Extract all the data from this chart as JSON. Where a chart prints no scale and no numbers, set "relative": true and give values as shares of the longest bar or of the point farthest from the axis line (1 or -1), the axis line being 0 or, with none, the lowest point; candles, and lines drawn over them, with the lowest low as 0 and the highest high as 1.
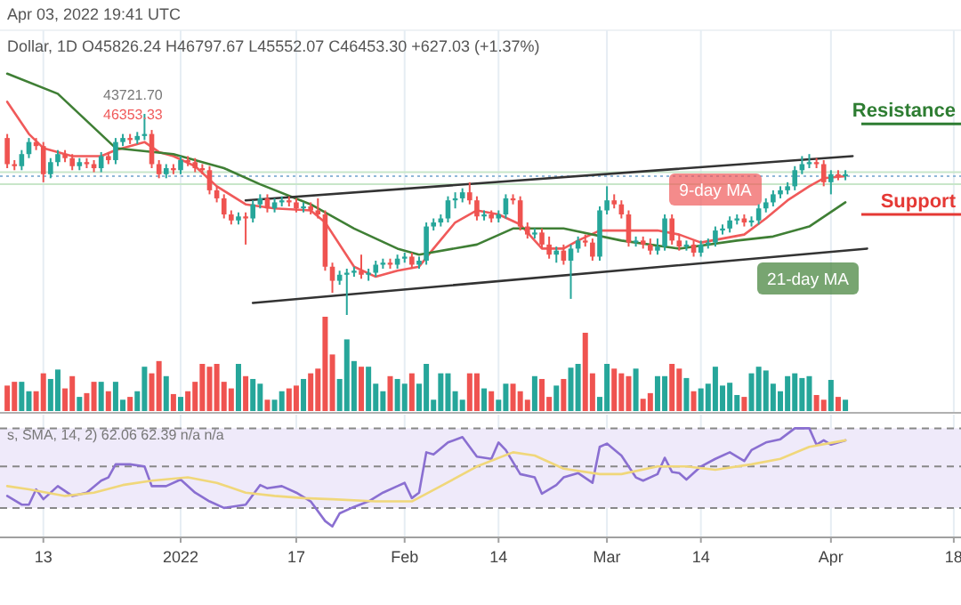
{
  "chart_data": [
    {
      "type": "candlestick",
      "relative": true,
      "grid": "x",
      "tick_labels": false,
      "xlim": [
        "2021-12-07",
        "2022-04-19"
      ],
      "xticks": [
        {
          "value": "2021-12-13",
          "label": null
        },
        {
          "value": "2022-01-01",
          "label": null
        },
        {
          "value": "2022-01-17",
          "label": null
        },
        {
          "value": "2022-02-01",
          "label": null
        },
        {
          "value": "2022-02-14",
          "label": null
        },
        {
          "value": "2022-03-01",
          "label": null
        },
        {
          "value": "2022-03-14",
          "label": null
        },
        {
          "value": "2022-04-01",
          "label": null
        },
        {
          "value": "2022-04-18",
          "label": null
        }
      ],
      "x": [
        "2021-12-08",
        "2021-12-09",
        "2021-12-10",
        "2021-12-11",
        "2021-12-12",
        "2021-12-13",
        "2021-12-14",
        "2021-12-15",
        "2021-12-16",
        "2021-12-17",
        "2021-12-18",
        "2021-12-19",
        "2021-12-20",
        "2021-12-21",
        "2021-12-22",
        "2021-12-23",
        "2021-12-24",
        "2021-12-25",
        "2021-12-26",
        "2021-12-27",
        "2021-12-28",
        "2021-12-29",
        "2021-12-30",
        "2021-12-31",
        "2022-01-01",
        "2022-01-02",
        "2022-01-03",
        "2022-01-04",
        "2022-01-05",
        "2022-01-06",
        "2022-01-07",
        "2022-01-08",
        "2022-01-09",
        "2022-01-10",
        "2022-01-11",
        "2022-01-12",
        "2022-01-13",
        "2022-01-14",
        "2022-01-15",
        "2022-01-16",
        "2022-01-17",
        "2022-01-18",
        "2022-01-19",
        "2022-01-20",
        "2022-01-21",
        "2022-01-22",
        "2022-01-23",
        "2022-01-24",
        "2022-01-25",
        "2022-01-26",
        "2022-01-27",
        "2022-01-28",
        "2022-01-29",
        "2022-01-30",
        "2022-01-31",
        "2022-02-01",
        "2022-02-02",
        "2022-02-03",
        "2022-02-04",
        "2022-02-05",
        "2022-02-06",
        "2022-02-07",
        "2022-02-08",
        "2022-02-09",
        "2022-02-10",
        "2022-02-11",
        "2022-02-12",
        "2022-02-13",
        "2022-02-14",
        "2022-02-15",
        "2022-02-16",
        "2022-02-17",
        "2022-02-18",
        "2022-02-19",
        "2022-02-20",
        "2022-02-21",
        "2022-02-22",
        "2022-02-23",
        "2022-02-24",
        "2022-02-25",
        "2022-02-26",
        "2022-02-27",
        "2022-02-28",
        "2022-03-01",
        "2022-03-02",
        "2022-03-03",
        "2022-03-04",
        "2022-03-05",
        "2022-03-06",
        "2022-03-07",
        "2022-03-08",
        "2022-03-09",
        "2022-03-10",
        "2022-03-11",
        "2022-03-12",
        "2022-03-13",
        "2022-03-14",
        "2022-03-15",
        "2022-03-16",
        "2022-03-17",
        "2022-03-18",
        "2022-03-19",
        "2022-03-20",
        "2022-03-21",
        "2022-03-22",
        "2022-03-23",
        "2022-03-24",
        "2022-03-25",
        "2022-03-26",
        "2022-03-27",
        "2022-03-28",
        "2022-03-29",
        "2022-03-30",
        "2022-03-31",
        "2022-04-01",
        "2022-04-02",
        "2022-04-03"
      ],
      "ohlc": [
        [
          0.88,
          0.9,
          0.73,
          0.75
        ],
        [
          0.75,
          0.77,
          0.72,
          0.74
        ],
        [
          0.74,
          0.82,
          0.72,
          0.8
        ],
        [
          0.8,
          0.88,
          0.78,
          0.86
        ],
        [
          0.86,
          0.88,
          0.82,
          0.84
        ],
        [
          0.84,
          0.86,
          0.66,
          0.7
        ],
        [
          0.7,
          0.78,
          0.68,
          0.76
        ],
        [
          0.76,
          0.82,
          0.74,
          0.8
        ],
        [
          0.8,
          0.82,
          0.76,
          0.78
        ],
        [
          0.78,
          0.8,
          0.72,
          0.74
        ],
        [
          0.74,
          0.78,
          0.72,
          0.76
        ],
        [
          0.76,
          0.78,
          0.73,
          0.75
        ],
        [
          0.75,
          0.77,
          0.71,
          0.73
        ],
        [
          0.73,
          0.81,
          0.71,
          0.79
        ],
        [
          0.79,
          0.81,
          0.75,
          0.77
        ],
        [
          0.77,
          0.88,
          0.75,
          0.86
        ],
        [
          0.86,
          0.9,
          0.84,
          0.88
        ],
        [
          0.88,
          0.9,
          0.85,
          0.87
        ],
        [
          0.87,
          0.91,
          0.85,
          0.89
        ],
        [
          0.89,
          1,
          0.87,
          0.9
        ],
        [
          0.9,
          0.92,
          0.73,
          0.75
        ],
        [
          0.75,
          0.77,
          0.68,
          0.7
        ],
        [
          0.7,
          0.75,
          0.68,
          0.73
        ],
        [
          0.73,
          0.75,
          0.7,
          0.72
        ],
        [
          0.72,
          0.79,
          0.7,
          0.77
        ],
        [
          0.77,
          0.79,
          0.74,
          0.76
        ],
        [
          0.76,
          0.78,
          0.71,
          0.73
        ],
        [
          0.73,
          0.75,
          0.7,
          0.72
        ],
        [
          0.72,
          0.74,
          0.6,
          0.62
        ],
        [
          0.62,
          0.64,
          0.56,
          0.58
        ],
        [
          0.58,
          0.6,
          0.48,
          0.5
        ],
        [
          0.5,
          0.52,
          0.45,
          0.47
        ],
        [
          0.47,
          0.51,
          0.45,
          0.49
        ],
        [
          0.49,
          0.51,
          0.35,
          0.48
        ],
        [
          0.48,
          0.57,
          0.46,
          0.55
        ],
        [
          0.55,
          0.6,
          0.53,
          0.58
        ],
        [
          0.58,
          0.6,
          0.51,
          0.53
        ],
        [
          0.53,
          0.58,
          0.51,
          0.56
        ],
        [
          0.56,
          0.59,
          0.54,
          0.57
        ],
        [
          0.57,
          0.59,
          0.54,
          0.56
        ],
        [
          0.56,
          0.58,
          0.51,
          0.53
        ],
        [
          0.53,
          0.56,
          0.51,
          0.54
        ],
        [
          0.54,
          0.56,
          0.5,
          0.52
        ],
        [
          0.52,
          0.58,
          0.48,
          0.5
        ],
        [
          0.5,
          0.52,
          0.22,
          0.24
        ],
        [
          0.24,
          0.26,
          0.11,
          0.17
        ],
        [
          0.17,
          0.22,
          0.15,
          0.2
        ],
        [
          0.2,
          0.23,
          0,
          0.21
        ],
        [
          0.21,
          0.24,
          0.19,
          0.22
        ],
        [
          0.22,
          0.3,
          0.18,
          0.2
        ],
        [
          0.2,
          0.23,
          0.17,
          0.21
        ],
        [
          0.21,
          0.27,
          0.19,
          0.25
        ],
        [
          0.25,
          0.28,
          0.23,
          0.26
        ],
        [
          0.26,
          0.28,
          0.23,
          0.25
        ],
        [
          0.25,
          0.3,
          0.23,
          0.28
        ],
        [
          0.28,
          0.31,
          0.26,
          0.29
        ],
        [
          0.29,
          0.31,
          0.23,
          0.25
        ],
        [
          0.25,
          0.29,
          0.23,
          0.27
        ],
        [
          0.27,
          0.46,
          0.25,
          0.44
        ],
        [
          0.44,
          0.48,
          0.42,
          0.46
        ],
        [
          0.46,
          0.5,
          0.44,
          0.48
        ],
        [
          0.48,
          0.59,
          0.46,
          0.57
        ],
        [
          0.57,
          0.61,
          0.53,
          0.58
        ],
        [
          0.58,
          0.63,
          0.56,
          0.61
        ],
        [
          0.61,
          0.66,
          0.55,
          0.57
        ],
        [
          0.57,
          0.59,
          0.47,
          0.49
        ],
        [
          0.49,
          0.52,
          0.47,
          0.5
        ],
        [
          0.5,
          0.52,
          0.46,
          0.48
        ],
        [
          0.48,
          0.52,
          0.46,
          0.5
        ],
        [
          0.5,
          0.6,
          0.48,
          0.58
        ],
        [
          0.58,
          0.6,
          0.55,
          0.57
        ],
        [
          0.57,
          0.59,
          0.42,
          0.44
        ],
        [
          0.44,
          0.46,
          0.38,
          0.4
        ],
        [
          0.4,
          0.43,
          0.38,
          0.41
        ],
        [
          0.41,
          0.43,
          0.33,
          0.35
        ],
        [
          0.35,
          0.39,
          0.28,
          0.3
        ],
        [
          0.3,
          0.34,
          0.26,
          0.32
        ],
        [
          0.32,
          0.35,
          0.25,
          0.27
        ],
        [
          0.27,
          0.35,
          0.08,
          0.33
        ],
        [
          0.33,
          0.39,
          0.31,
          0.37
        ],
        [
          0.37,
          0.4,
          0.34,
          0.36
        ],
        [
          0.36,
          0.38,
          0.27,
          0.29
        ],
        [
          0.29,
          0.54,
          0.27,
          0.52
        ],
        [
          0.52,
          0.64,
          0.5,
          0.57
        ],
        [
          0.57,
          0.6,
          0.53,
          0.55
        ],
        [
          0.55,
          0.57,
          0.48,
          0.5
        ],
        [
          0.5,
          0.52,
          0.34,
          0.36
        ],
        [
          0.36,
          0.39,
          0.34,
          0.37
        ],
        [
          0.37,
          0.39,
          0.33,
          0.35
        ],
        [
          0.35,
          0.38,
          0.3,
          0.32
        ],
        [
          0.32,
          0.38,
          0.3,
          0.34
        ],
        [
          0.34,
          0.5,
          0.32,
          0.48
        ],
        [
          0.48,
          0.5,
          0.35,
          0.37
        ],
        [
          0.37,
          0.4,
          0.32,
          0.34
        ],
        [
          0.34,
          0.37,
          0.32,
          0.35
        ],
        [
          0.35,
          0.37,
          0.29,
          0.31
        ],
        [
          0.31,
          0.37,
          0.29,
          0.35
        ],
        [
          0.35,
          0.38,
          0.33,
          0.36
        ],
        [
          0.36,
          0.44,
          0.34,
          0.42
        ],
        [
          0.42,
          0.45,
          0.4,
          0.43
        ],
        [
          0.43,
          0.49,
          0.41,
          0.47
        ],
        [
          0.47,
          0.5,
          0.45,
          0.48
        ],
        [
          0.48,
          0.5,
          0.44,
          0.46
        ],
        [
          0.46,
          0.49,
          0.44,
          0.47
        ],
        [
          0.47,
          0.55,
          0.45,
          0.53
        ],
        [
          0.53,
          0.58,
          0.51,
          0.56
        ],
        [
          0.56,
          0.62,
          0.54,
          0.6
        ],
        [
          0.6,
          0.64,
          0.58,
          0.62
        ],
        [
          0.62,
          0.66,
          0.6,
          0.64
        ],
        [
          0.64,
          0.74,
          0.62,
          0.72
        ],
        [
          0.72,
          0.79,
          0.7,
          0.75
        ],
        [
          0.75,
          0.8,
          0.73,
          0.76
        ],
        [
          0.76,
          0.78,
          0.73,
          0.75
        ],
        [
          0.75,
          0.77,
          0.64,
          0.66
        ],
        [
          0.66,
          0.72,
          0.6,
          0.7
        ],
        [
          0.7,
          0.72,
          0.67,
          0.69
        ],
        [
          0.69,
          0.72,
          0.67,
          0.7
        ]
      ],
      "colors": [
        "#ef5350",
        "#ef5350",
        "#26a69a",
        "#26a69a",
        "#ef5350",
        "#ef5350",
        "#26a69a",
        "#26a69a",
        "#ef5350",
        "#ef5350",
        "#26a69a",
        "#ef5350",
        "#ef5350",
        "#26a69a",
        "#ef5350",
        "#26a69a",
        "#26a69a",
        "#ef5350",
        "#26a69a",
        "#26a69a",
        "#ef5350",
        "#ef5350",
        "#26a69a",
        "#ef5350",
        "#26a69a",
        "#ef5350",
        "#ef5350",
        "#ef5350",
        "#ef5350",
        "#ef5350",
        "#ef5350",
        "#ef5350",
        "#26a69a",
        "#ef5350",
        "#26a69a",
        "#26a69a",
        "#ef5350",
        "#26a69a",
        "#26a69a",
        "#ef5350",
        "#ef5350",
        "#26a69a",
        "#ef5350",
        "#ef5350",
        "#ef5350",
        "#ef5350",
        "#26a69a",
        "#26a69a",
        "#26a69a",
        "#ef5350",
        "#26a69a",
        "#26a69a",
        "#26a69a",
        "#ef5350",
        "#26a69a",
        "#26a69a",
        "#ef5350",
        "#26a69a",
        "#26a69a",
        "#26a69a",
        "#26a69a",
        "#26a69a",
        "#26a69a",
        "#26a69a",
        "#ef5350",
        "#ef5350",
        "#26a69a",
        "#ef5350",
        "#26a69a",
        "#26a69a",
        "#ef5350",
        "#ef5350",
        "#ef5350",
        "#26a69a",
        "#ef5350",
        "#ef5350",
        "#26a69a",
        "#ef5350",
        "#26a69a",
        "#26a69a",
        "#ef5350",
        "#ef5350",
        "#26a69a",
        "#26a69a",
        "#ef5350",
        "#ef5350",
        "#ef5350",
        "#26a69a",
        "#ef5350",
        "#ef5350",
        "#26a69a",
        "#26a69a",
        "#ef5350",
        "#ef5350",
        "#26a69a",
        "#ef5350",
        "#26a69a",
        "#26a69a",
        "#26a69a",
        "#26a69a",
        "#26a69a",
        "#26a69a",
        "#ef5350",
        "#26a69a",
        "#26a69a",
        "#26a69a",
        "#26a69a",
        "#26a69a",
        "#26a69a",
        "#26a69a",
        "#26a69a",
        "#26a69a",
        "#ef5350",
        "#ef5350",
        "#26a69a",
        "#ef5350",
        "#26a69a"
      ],
      "series": [
        {
          "type": "line",
          "color": "#f05a5a",
          "x": [
            "2021-12-08",
            "2021-12-11",
            "2021-12-13",
            "2021-12-17",
            "2021-12-21",
            "2021-12-23",
            "2021-12-27",
            "2021-12-29",
            "2021-12-31",
            "2022-01-03",
            "2022-01-06",
            "2022-01-10",
            "2022-01-14",
            "2022-01-19",
            "2022-01-21",
            "2022-01-25",
            "2022-01-28",
            "2022-01-31",
            "2022-02-03",
            "2022-02-05",
            "2022-02-08",
            "2022-02-11",
            "2022-02-14",
            "2022-02-17",
            "2022-02-20",
            "2022-02-23",
            "2022-02-25",
            "2022-02-28",
            "2022-03-03",
            "2022-03-05",
            "2022-03-08",
            "2022-03-11",
            "2022-03-14",
            "2022-03-17",
            "2022-03-20",
            "2022-03-23",
            "2022-03-26",
            "2022-03-29",
            "2022-03-31",
            "2022-04-03"
          ],
          "values": [
            1.06,
            0.9,
            0.83,
            0.79,
            0.79,
            0.82,
            0.86,
            0.81,
            0.79,
            0.74,
            0.64,
            0.55,
            0.53,
            0.52,
            0.46,
            0.24,
            0.19,
            0.22,
            0.24,
            0.33,
            0.46,
            0.52,
            0.5,
            0.45,
            0.33,
            0.33,
            0.37,
            0.42,
            0.42,
            0.42,
            0.42,
            0.4,
            0.36,
            0.38,
            0.4,
            0.48,
            0.57,
            0.64,
            0.68,
            0.69
          ]
        },
        {
          "type": "line",
          "color": "#3f7f35",
          "x": [
            "2021-12-08",
            "2021-12-15",
            "2021-12-23",
            "2021-12-31",
            "2022-01-07",
            "2022-01-12",
            "2022-01-19",
            "2022-01-25",
            "2022-01-31",
            "2022-02-03",
            "2022-02-11",
            "2022-02-16",
            "2022-02-23",
            "2022-03-03",
            "2022-03-11",
            "2022-03-19",
            "2022-03-24",
            "2022-03-29",
            "2022-04-03"
          ],
          "values": [
            1.2,
            1.1,
            0.83,
            0.8,
            0.73,
            0.65,
            0.55,
            0.43,
            0.33,
            0.3,
            0.35,
            0.43,
            0.43,
            0.37,
            0.33,
            0.37,
            0.39,
            0.44,
            0.56
          ]
        },
        {
          "type": "line",
          "color": "#333333",
          "x": [
            "2022-01-10",
            "2022-04-04"
          ],
          "values": [
            0.57,
            0.79
          ]
        },
        {
          "type": "line",
          "color": "#333333",
          "x": [
            "2022-01-11",
            "2022-04-06"
          ],
          "values": [
            0.06,
            0.33
          ]
        }
      ],
      "ref_lines": [
        {
          "axis": "y",
          "value": 0.71,
          "color": "#c8e6c9"
        },
        {
          "axis": "y",
          "value": 0.65,
          "color": "#c8e6c9"
        },
        {
          "axis": "y",
          "value": 0.69,
          "color": "#90b8d8",
          "line_style": "dotted"
        },
        {
          "axis": "y",
          "value": 0.95,
          "label": "Resistance",
          "color": "#2e7d32"
        },
        {
          "axis": "y",
          "value": 0.5,
          "label": "Support",
          "color": "#e53935"
        }
      ],
      "annotations": [
        "Apr 03, 2022 19:41 UTC",
        "Dollar, 1D  O45826.24  H46797.67  L45552.07  C46453.30  +627.03 (+1.37%)",
        "43721.70",
        "46353.33",
        "9-day MA",
        "21-day MA"
      ]
    },
    {
      "type": "bar",
      "relative": true,
      "grid": "x",
      "tick_labels": false,
      "xlim": [
        "2021-12-07",
        "2022-04-19"
      ],
      "xticks": [
        {
          "value": "2021-12-13",
          "label": null
        },
        {
          "value": "2022-01-01",
          "label": null
        },
        {
          "value": "2022-01-17",
          "label": null
        },
        {
          "value": "2022-02-01",
          "label": null
        },
        {
          "value": "2022-02-14",
          "label": null
        },
        {
          "value": "2022-03-01",
          "label": null
        },
        {
          "value": "2022-03-14",
          "label": null
        },
        {
          "value": "2022-04-01",
          "label": null
        },
        {
          "value": "2022-04-18",
          "label": null
        }
      ],
      "x": [
        "2021-12-08",
        "2021-12-09",
        "2021-12-10",
        "2021-12-11",
        "2021-12-12",
        "2021-12-13",
        "2021-12-14",
        "2021-12-15",
        "2021-12-16",
        "2021-12-17",
        "2021-12-18",
        "2021-12-19",
        "2021-12-20",
        "2021-12-21",
        "2021-12-22",
        "2021-12-23",
        "2021-12-24",
        "2021-12-25",
        "2021-12-26",
        "2021-12-27",
        "2021-12-28",
        "2021-12-29",
        "2021-12-30",
        "2021-12-31",
        "2022-01-01",
        "2022-01-02",
        "2022-01-03",
        "2022-01-04",
        "2022-01-05",
        "2022-01-06",
        "2022-01-07",
        "2022-01-08",
        "2022-01-09",
        "2022-01-10",
        "2022-01-11",
        "2022-01-12",
        "2022-01-13",
        "2022-01-14",
        "2022-01-15",
        "2022-01-16",
        "2022-01-17",
        "2022-01-18",
        "2022-01-19",
        "2022-01-20",
        "2022-01-21",
        "2022-01-22",
        "2022-01-23",
        "2022-01-24",
        "2022-01-25",
        "2022-01-26",
        "2022-01-27",
        "2022-01-28",
        "2022-01-29",
        "2022-01-30",
        "2022-01-31",
        "2022-02-01",
        "2022-02-02",
        "2022-02-03",
        "2022-02-04",
        "2022-02-05",
        "2022-02-06",
        "2022-02-07",
        "2022-02-08",
        "2022-02-09",
        "2022-02-10",
        "2022-02-11",
        "2022-02-12",
        "2022-02-13",
        "2022-02-14",
        "2022-02-15",
        "2022-02-16",
        "2022-02-17",
        "2022-02-18",
        "2022-02-19",
        "2022-02-20",
        "2022-02-21",
        "2022-02-22",
        "2022-02-23",
        "2022-02-24",
        "2022-02-25",
        "2022-02-26",
        "2022-02-27",
        "2022-02-28",
        "2022-03-01",
        "2022-03-02",
        "2022-03-03",
        "2022-03-04",
        "2022-03-05",
        "2022-03-06",
        "2022-03-07",
        "2022-03-08",
        "2022-03-09",
        "2022-03-10",
        "2022-03-11",
        "2022-03-12",
        "2022-03-13",
        "2022-03-14",
        "2022-03-15",
        "2022-03-16",
        "2022-03-17",
        "2022-03-18",
        "2022-03-19",
        "2022-03-20",
        "2022-03-21",
        "2022-03-22",
        "2022-03-23",
        "2022-03-24",
        "2022-03-25",
        "2022-03-26",
        "2022-03-27",
        "2022-03-28",
        "2022-03-29",
        "2022-03-30",
        "2022-03-31",
        "2022-04-01",
        "2022-04-02",
        "2022-04-03"
      ],
      "values": [
        0.27,
        0.31,
        0.31,
        0.21,
        0.21,
        0.4,
        0.34,
        0.44,
        0.24,
        0.37,
        0.15,
        0.19,
        0.31,
        0.31,
        0.21,
        0.31,
        0.12,
        0.15,
        0.21,
        0.47,
        0.4,
        0.53,
        0.37,
        0.18,
        0.15,
        0.21,
        0.31,
        0.5,
        0.47,
        0.5,
        0.31,
        0.24,
        0.5,
        0.37,
        0.34,
        0.29,
        0.12,
        0.12,
        0.21,
        0.24,
        0.27,
        0.34,
        0.4,
        0.45,
        1,
        0.6,
        0.34,
        0.76,
        0.53,
        0.47,
        0.47,
        0.29,
        0.21,
        0.37,
        0.34,
        0.29,
        0.4,
        0.29,
        0.5,
        0.12,
        0.4,
        0.4,
        0.21,
        0.12,
        0.4,
        0.4,
        0.24,
        0.21,
        0.12,
        0.29,
        0.29,
        0.21,
        0.12,
        0.37,
        0.34,
        0.15,
        0.27,
        0.34,
        0.46,
        0.5,
        0.83,
        0.4,
        0.15,
        0.5,
        0.45,
        0.4,
        0.37,
        0.45,
        0.13,
        0.19,
        0.37,
        0.37,
        0.5,
        0.45,
        0.35,
        0.21,
        0.24,
        0.29,
        0.47,
        0.27,
        0.3,
        0.17,
        0.15,
        0.4,
        0.47,
        0.43,
        0.29,
        0.21,
        0.37,
        0.4,
        0.35,
        0.37,
        0.17,
        0.12,
        0.33,
        0.15,
        0.12
      ],
      "colors": [
        "#ef5350",
        "#ef5350",
        "#26a69a",
        "#26a69a",
        "#ef5350",
        "#ef5350",
        "#26a69a",
        "#26a69a",
        "#ef5350",
        "#ef5350",
        "#26a69a",
        "#ef5350",
        "#ef5350",
        "#26a69a",
        "#ef5350",
        "#26a69a",
        "#26a69a",
        "#ef5350",
        "#26a69a",
        "#26a69a",
        "#ef5350",
        "#ef5350",
        "#26a69a",
        "#ef5350",
        "#26a69a",
        "#ef5350",
        "#ef5350",
        "#ef5350",
        "#ef5350",
        "#ef5350",
        "#ef5350",
        "#ef5350",
        "#26a69a",
        "#ef5350",
        "#26a69a",
        "#26a69a",
        "#ef5350",
        "#26a69a",
        "#26a69a",
        "#ef5350",
        "#ef5350",
        "#26a69a",
        "#ef5350",
        "#ef5350",
        "#ef5350",
        "#ef5350",
        "#26a69a",
        "#26a69a",
        "#26a69a",
        "#ef5350",
        "#26a69a",
        "#26a69a",
        "#26a69a",
        "#ef5350",
        "#26a69a",
        "#26a69a",
        "#ef5350",
        "#26a69a",
        "#26a69a",
        "#26a69a",
        "#26a69a",
        "#26a69a",
        "#26a69a",
        "#26a69a",
        "#ef5350",
        "#ef5350",
        "#26a69a",
        "#ef5350",
        "#26a69a",
        "#26a69a",
        "#ef5350",
        "#ef5350",
        "#ef5350",
        "#26a69a",
        "#ef5350",
        "#ef5350",
        "#26a69a",
        "#ef5350",
        "#26a69a",
        "#26a69a",
        "#ef5350",
        "#ef5350",
        "#26a69a",
        "#26a69a",
        "#ef5350",
        "#ef5350",
        "#ef5350",
        "#26a69a",
        "#ef5350",
        "#ef5350",
        "#26a69a",
        "#26a69a",
        "#ef5350",
        "#ef5350",
        "#26a69a",
        "#ef5350",
        "#26a69a",
        "#26a69a",
        "#26a69a",
        "#26a69a",
        "#26a69a",
        "#26a69a",
        "#ef5350",
        "#26a69a",
        "#26a69a",
        "#26a69a",
        "#26a69a",
        "#26a69a",
        "#26a69a",
        "#26a69a",
        "#26a69a",
        "#26a69a",
        "#ef5350",
        "#ef5350",
        "#26a69a",
        "#ef5350",
        "#26a69a"
      ]
    },
    {
      "type": "line",
      "relative": true,
      "grid": "x",
      "tick_labels": "x",
      "xlim": [
        "2021-12-07",
        "2022-04-19"
      ],
      "xticks": [
        {
          "value": "2021-12-13",
          "label": "13"
        },
        {
          "value": "2022-01-01",
          "label": "2022"
        },
        {
          "value": "2022-01-17",
          "label": "17"
        },
        {
          "value": "2022-02-01",
          "label": "Feb"
        },
        {
          "value": "2022-02-14",
          "label": "14"
        },
        {
          "value": "2022-03-01",
          "label": "Mar"
        },
        {
          "value": "2022-03-14",
          "label": "14"
        },
        {
          "value": "2022-04-01",
          "label": "Apr"
        },
        {
          "value": "2022-04-18",
          "label": "18"
        }
      ],
      "series": [
        {
          "color": "#8a6fd1",
          "x": [
            "2021-12-08",
            "2021-12-10",
            "2021-12-11",
            "2021-12-12",
            "2021-12-13",
            "2021-12-15",
            "2021-12-17",
            "2021-12-19",
            "2021-12-21",
            "2021-12-22",
            "2021-12-23",
            "2021-12-25",
            "2021-12-27",
            "2021-12-28",
            "2021-12-30",
            "2022-01-01",
            "2022-01-03",
            "2022-01-05",
            "2022-01-07",
            "2022-01-10",
            "2022-01-12",
            "2022-01-13",
            "2022-01-15",
            "2022-01-17",
            "2022-01-19",
            "2022-01-21",
            "2022-01-22",
            "2022-01-23",
            "2022-01-25",
            "2022-01-27",
            "2022-01-29",
            "2022-01-31",
            "2022-02-01",
            "2022-02-02",
            "2022-02-03",
            "2022-02-04",
            "2022-02-05",
            "2022-02-07",
            "2022-02-09",
            "2022-02-11",
            "2022-02-13",
            "2022-02-14",
            "2022-02-15",
            "2022-02-17",
            "2022-02-19",
            "2022-02-20",
            "2022-02-22",
            "2022-02-23",
            "2022-02-25",
            "2022-02-27",
            "2022-02-28",
            "2022-03-01",
            "2022-03-03",
            "2022-03-05",
            "2022-03-06",
            "2022-03-08",
            "2022-03-09",
            "2022-03-10",
            "2022-03-11",
            "2022-03-12",
            "2022-03-14",
            "2022-03-16",
            "2022-03-18",
            "2022-03-20",
            "2022-03-21",
            "2022-03-23",
            "2022-03-25",
            "2022-03-27",
            "2022-03-29",
            "2022-03-30",
            "2022-03-31",
            "2022-04-01",
            "2022-04-03"
          ],
          "values": [
            0.38,
            0.3,
            0.3,
            0.44,
            0.35,
            0.47,
            0.38,
            0.41,
            0.52,
            0.55,
            0.67,
            0.67,
            0.65,
            0.47,
            0.47,
            0.53,
            0.41,
            0.33,
            0.27,
            0.3,
            0.48,
            0.45,
            0.47,
            0.41,
            0.33,
            0.15,
            0.1,
            0.22,
            0.28,
            0.33,
            0.41,
            0.47,
            0.5,
            0.36,
            0.41,
            0.78,
            0.76,
            0.87,
            0.92,
            0.74,
            0.72,
            0.87,
            0.8,
            0.58,
            0.55,
            0.4,
            0.48,
            0.55,
            0.59,
            0.5,
            0.83,
            0.86,
            0.75,
            0.55,
            0.52,
            0.58,
            0.73,
            0.6,
            0.59,
            0.53,
            0.65,
            0.72,
            0.78,
            0.7,
            0.8,
            0.87,
            0.9,
            1,
            1,
            0.85,
            0.89,
            0.85,
            0.89
          ]
        },
        {
          "color": "#f0d77a",
          "x": [
            "2021-12-08",
            "2021-12-11",
            "2021-12-16",
            "2021-12-20",
            "2021-12-24",
            "2021-12-28",
            "2022-01-02",
            "2022-01-06",
            "2022-01-10",
            "2022-01-14",
            "2022-01-18",
            "2022-01-22",
            "2022-01-28",
            "2022-02-02",
            "2022-02-06",
            "2022-02-11",
            "2022-02-16",
            "2022-02-19",
            "2022-02-23",
            "2022-02-28",
            "2022-03-03",
            "2022-03-08",
            "2022-03-12",
            "2022-03-16",
            "2022-03-21",
            "2022-03-25",
            "2022-03-29",
            "2022-04-03"
          ],
          "values": [
            0.47,
            0.44,
            0.38,
            0.41,
            0.48,
            0.52,
            0.55,
            0.5,
            0.41,
            0.38,
            0.36,
            0.35,
            0.33,
            0.33,
            0.47,
            0.65,
            0.78,
            0.75,
            0.63,
            0.58,
            0.58,
            0.65,
            0.65,
            0.62,
            0.67,
            0.72,
            0.83,
            0.89
          ]
        }
      ],
      "bands": [
        {
          "axis": "y",
          "from": 0.27,
          "to": 1,
          "color": "#efeafa"
        }
      ],
      "ref_lines": [
        {
          "axis": "y",
          "value": 1,
          "color": "#888888",
          "line_style": "dashed"
        },
        {
          "axis": "y",
          "value": 0.65,
          "color": "#888888",
          "line_style": "dashed"
        },
        {
          "axis": "y",
          "value": 0.27,
          "color": "#888888",
          "line_style": "dashed"
        }
      ],
      "annotations": [
        "s, SMA, 14, 2)  62.06  62.39  n/a  n/a"
      ]
    }
  ]
}
